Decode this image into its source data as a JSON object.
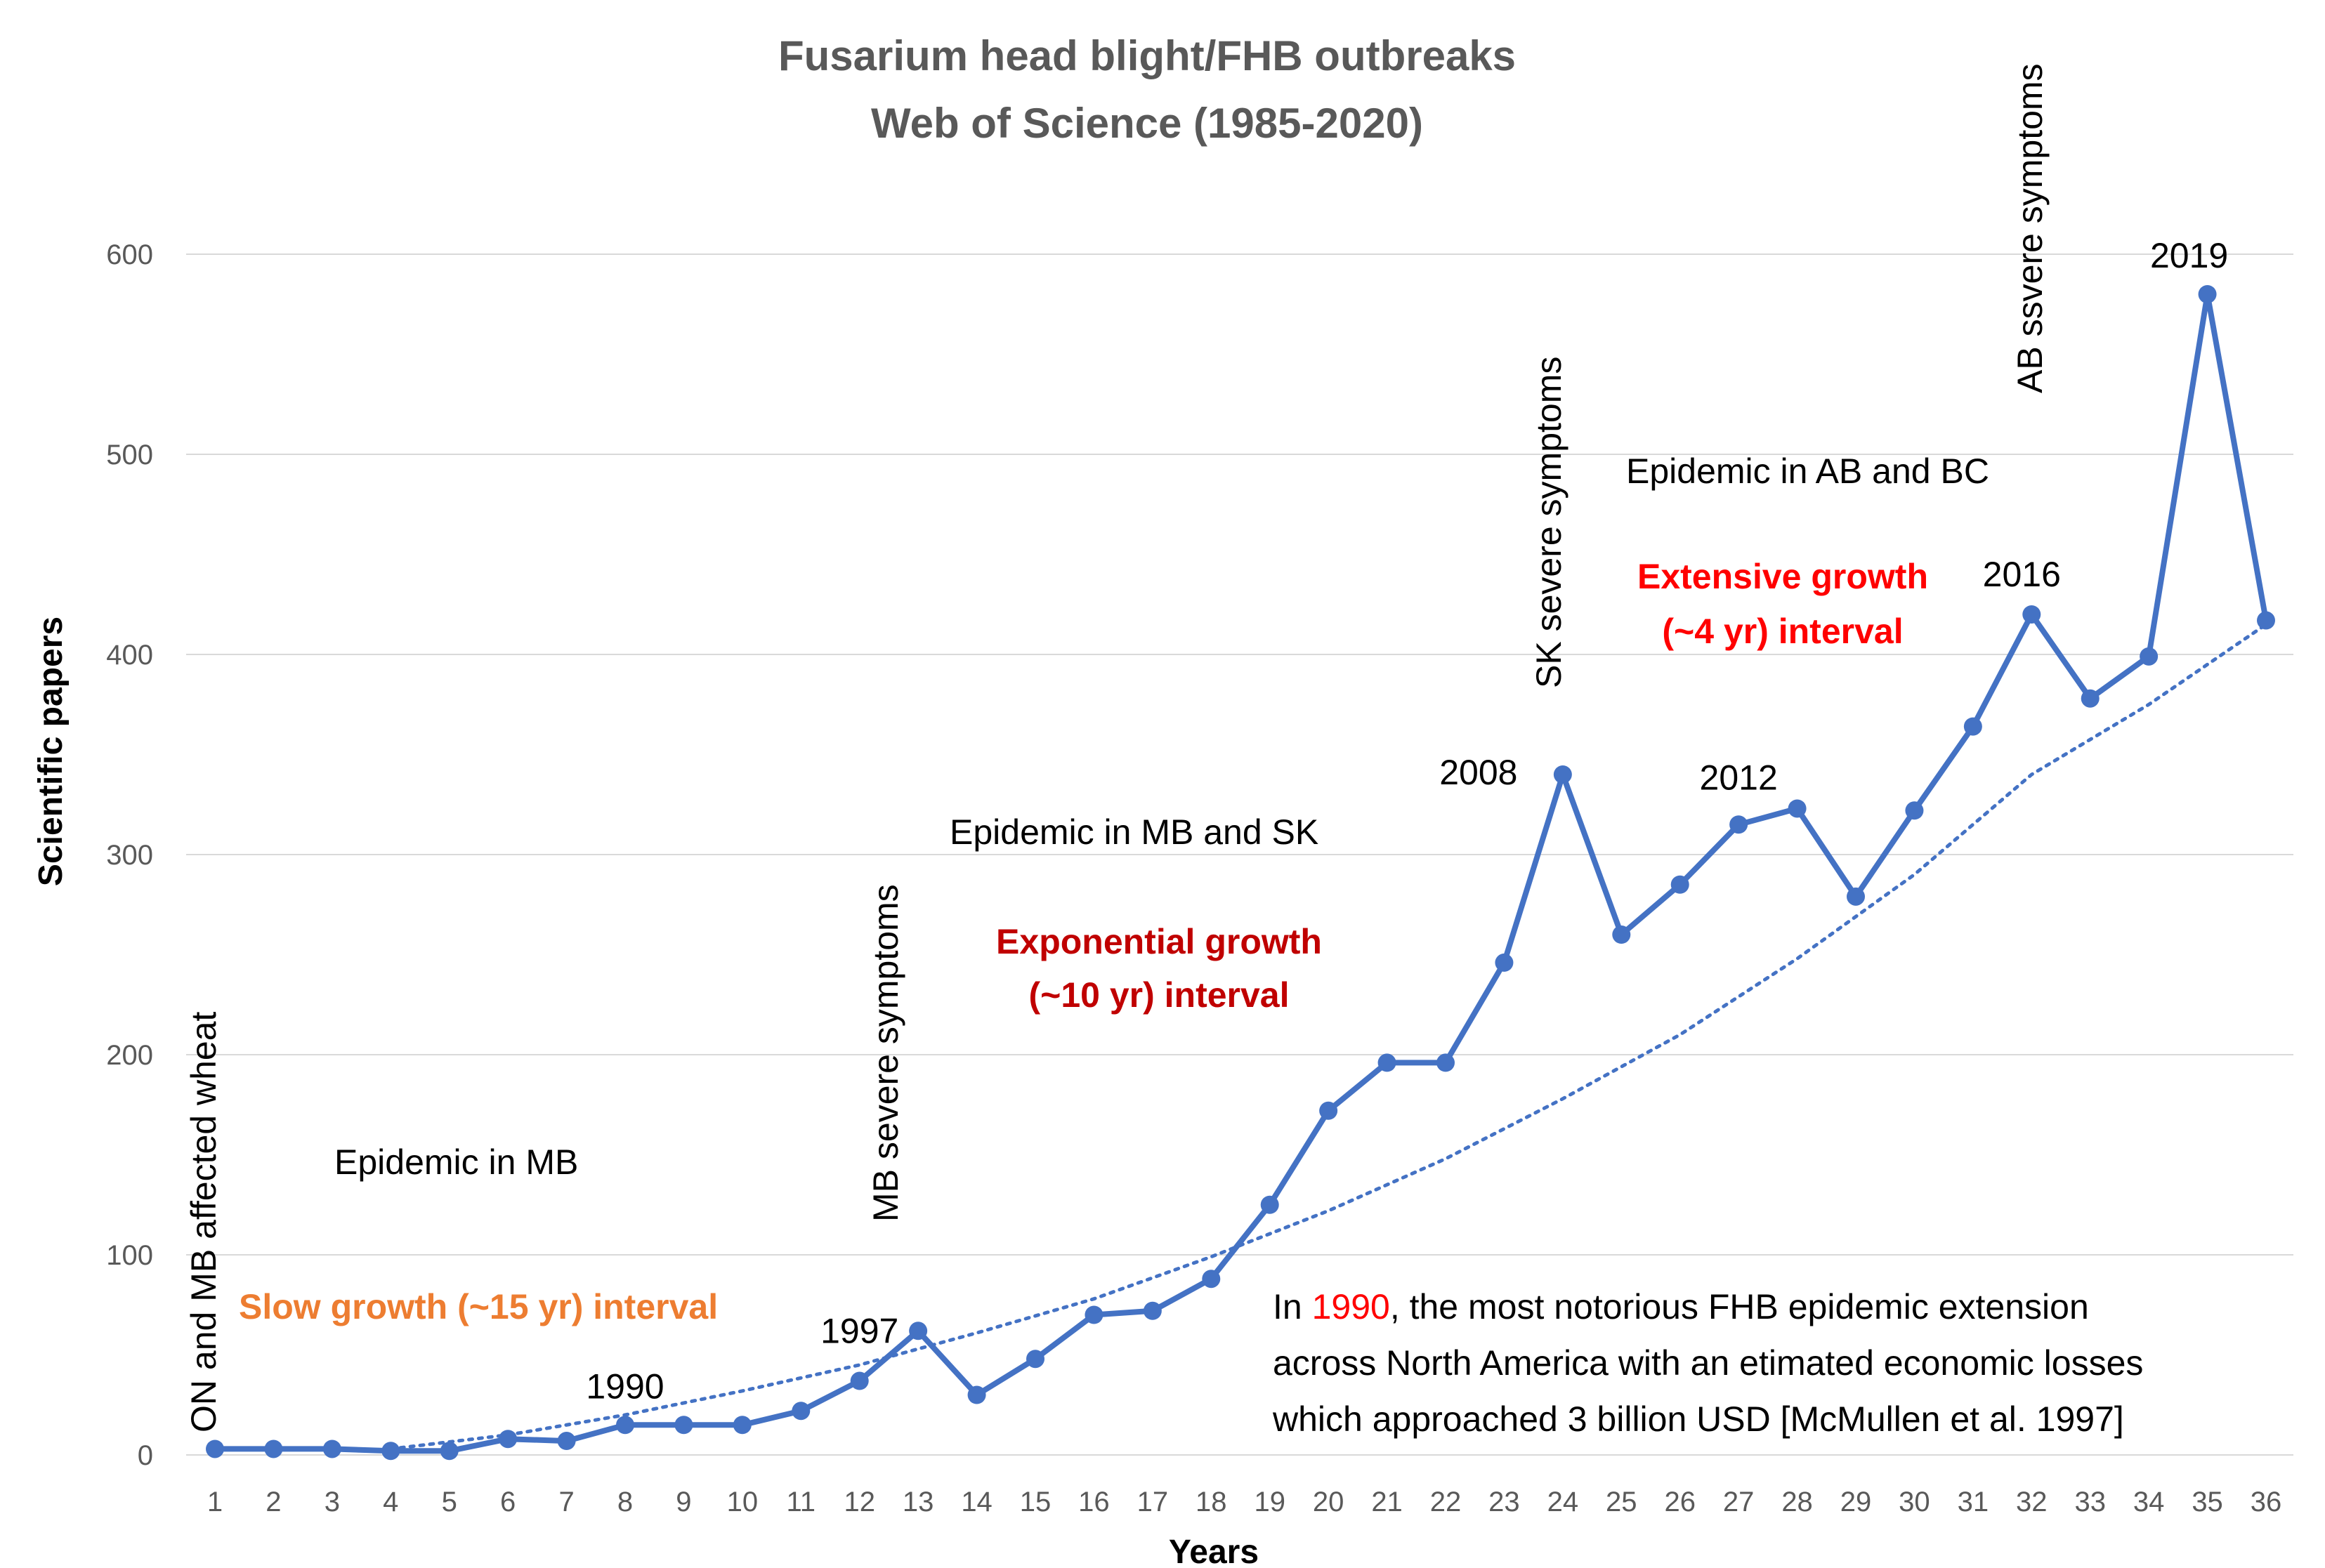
{
  "chart_data": {
    "type": "line",
    "title": [
      "Fusarium head blight/FHB outbreaks",
      "Web of Science  (1985-2020)"
    ],
    "xlabel": "Years",
    "ylabel": "Scientific papers",
    "ylim": [
      0,
      600
    ],
    "yticks": [
      0,
      100,
      200,
      300,
      400,
      500,
      600
    ],
    "grid": true,
    "x": [
      1,
      2,
      3,
      4,
      5,
      6,
      7,
      8,
      9,
      10,
      11,
      12,
      13,
      14,
      15,
      16,
      17,
      18,
      19,
      20,
      21,
      22,
      23,
      24,
      25,
      26,
      27,
      28,
      29,
      30,
      31,
      32,
      33,
      34,
      35,
      36
    ],
    "x_tick_labels": [
      "1",
      "2",
      "3",
      "4",
      "5",
      "6",
      "7",
      "8",
      "9",
      "10",
      "11",
      "12",
      "13",
      "14",
      "15",
      "16",
      "17",
      "18",
      "19",
      "20",
      "21",
      "22",
      "23",
      "24",
      "25",
      "26",
      "27",
      "28",
      "29",
      "30",
      "31",
      "32",
      "33",
      "34",
      "35",
      "36"
    ],
    "series": [
      {
        "name": "Scientific papers",
        "color": "#4472C4",
        "values": [
          3,
          3,
          3,
          2,
          2,
          8,
          7,
          15,
          15,
          15,
          22,
          37,
          62,
          30,
          48,
          70,
          72,
          88,
          125,
          172,
          196,
          196,
          246,
          340,
          260,
          285,
          315,
          323,
          279,
          322,
          364,
          420,
          378,
          399,
          580,
          417
        ]
      }
    ],
    "trendline": {
      "type": "exponential",
      "style": "dotted",
      "color": "#4472C4",
      "x": [
        4,
        6,
        8,
        10,
        12,
        14,
        16,
        18,
        20,
        22,
        24,
        26,
        28,
        30,
        32,
        34,
        36
      ],
      "values": [
        3,
        10,
        20,
        32,
        45,
        61,
        78,
        99,
        122,
        148,
        178,
        210,
        248,
        290,
        340,
        375,
        415
      ]
    },
    "point_labels": [
      {
        "x": 8,
        "text": "1990"
      },
      {
        "x": 12,
        "text": "1997"
      },
      {
        "x": 24,
        "text": "2008"
      },
      {
        "x": 27,
        "text": "2012"
      },
      {
        "x": 32,
        "text": "2016"
      },
      {
        "x": 35,
        "text": "2019"
      }
    ],
    "annotations": {
      "vertical_on_mb": "ON and MB affected wheat",
      "vertical_mb": "MB severe symptoms",
      "vertical_sk": "SK severe symptoms",
      "vertical_ab": "AB ssvere symptoms",
      "epidemic_mb": "Epidemic in MB",
      "epidemic_mb_sk": "Epidemic in MB and SK",
      "epidemic_ab_bc": "Epidemic in AB and BC",
      "slow_growth": "Slow growth  (~15 yr) interval",
      "exp_growth_1": "Exponential growth",
      "exp_growth_2": "(~10 yr) interval",
      "ext_growth_1": "Extensive growth",
      "ext_growth_2": "(~4 yr)  interval",
      "note_prefix": "In ",
      "note_year": "1990",
      "note_line1_rest": ", the most notorious FHB epidemic extension",
      "note_line2": "across North America with an etimated economic losses",
      "note_line3": "which approached 3 billion USD [McMullen et al. 1997]"
    },
    "colors": {
      "slow": "#ED7D31",
      "exp": "#C00000",
      "ext": "#FF0000",
      "note_year": "#FF0000",
      "grid": "#D9D9D9"
    }
  }
}
